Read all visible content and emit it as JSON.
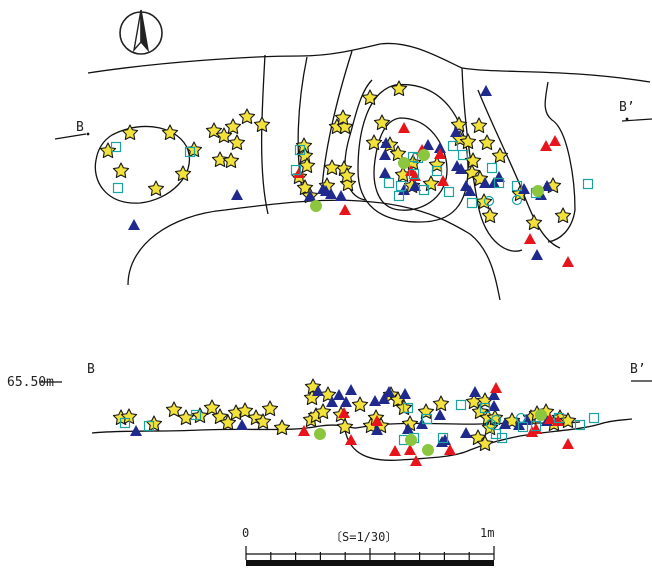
{
  "plan": {
    "section_start": "B",
    "section_end": "B’"
  },
  "section": {
    "elevation": "65.50m",
    "section_start": "B",
    "section_end": "B’"
  },
  "scale": {
    "zero": "0",
    "ratio": "〔S=1/30〕",
    "one_meter": "1m"
  },
  "north_arrow": {
    "icon": "north-arrow-icon"
  },
  "colors": {
    "star": "#f2e23a",
    "triangle_blue": "#1f2a8c",
    "triangle_red": "#e8141c",
    "square_cyan": "#19a3a3",
    "circle_green": "#8cc63f"
  }
}
